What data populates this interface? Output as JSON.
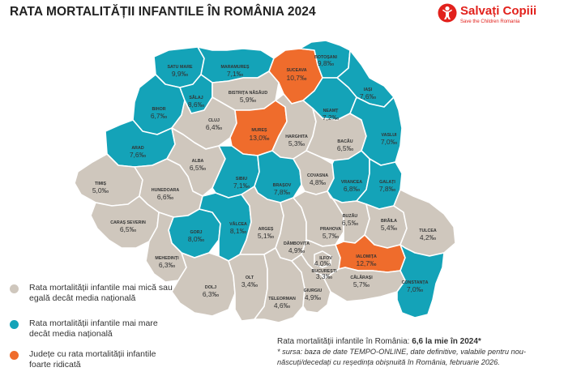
{
  "title": "RATA MORTALITĂȚII INFANTILE ÎN ROMÂNIA 2024",
  "logo": {
    "name": "Salvați Copiii",
    "tagline": "Save the Children Romania"
  },
  "colors": {
    "gray": "#cfc7bd",
    "teal": "#14a3b8",
    "orange": "#ef6c2c"
  },
  "counties": {
    "satu_mare": {
      "name": "SATU MARE",
      "value": "9,9‰",
      "category": "teal"
    },
    "maramures": {
      "name": "MARAMUREȘ",
      "value": "7,1‰",
      "category": "teal"
    },
    "suceava": {
      "name": "SUCEAVA",
      "value": "10,7‰",
      "category": "orange"
    },
    "botosani": {
      "name": "BOTOȘANI",
      "value": "9,8‰",
      "category": "teal"
    },
    "bihor": {
      "name": "BIHOR",
      "value": "6,7‰",
      "category": "teal"
    },
    "salaj": {
      "name": "SĂLAJ",
      "value": "8,6‰",
      "category": "teal"
    },
    "bistrita": {
      "name": "BISTRIȚA NĂSĂUD",
      "value": "5,9‰",
      "category": "gray"
    },
    "iasi": {
      "name": "IAȘI",
      "value": "7,6‰",
      "category": "teal"
    },
    "neamt": {
      "name": "NEAMȚ",
      "value": "7,2‰",
      "category": "teal"
    },
    "cluj": {
      "name": "CLUJ",
      "value": "6,4‰",
      "category": "gray"
    },
    "mures": {
      "name": "MUREȘ",
      "value": "13,0‰",
      "category": "orange"
    },
    "harghita": {
      "name": "HARGHITA",
      "value": "5,3‰",
      "category": "gray"
    },
    "bacau": {
      "name": "BACĂU",
      "value": "6,5‰",
      "category": "gray"
    },
    "vaslui": {
      "name": "VASLUI",
      "value": "7,0‰",
      "category": "teal"
    },
    "arad": {
      "name": "ARAD",
      "value": "7,6‰",
      "category": "teal"
    },
    "alba": {
      "name": "ALBA",
      "value": "6,5‰",
      "category": "gray"
    },
    "sibiu": {
      "name": "SIBIU",
      "value": "7,1‰",
      "category": "teal"
    },
    "brasov": {
      "name": "BRAȘOV",
      "value": "7,8‰",
      "category": "teal"
    },
    "covasna": {
      "name": "COVASNA",
      "value": "4,8‰",
      "category": "gray"
    },
    "vrancea": {
      "name": "VRANCEA",
      "value": "6,8‰",
      "category": "teal"
    },
    "galati": {
      "name": "GALAȚI",
      "value": "7,8‰",
      "category": "teal"
    },
    "timis": {
      "name": "TIMIȘ",
      "value": "5,0‰",
      "category": "gray"
    },
    "hunedoara": {
      "name": "HUNEDOARA",
      "value": "6,6‰",
      "category": "gray"
    },
    "caras": {
      "name": "CARAȘ SEVERIN",
      "value": "6,5‰",
      "category": "gray"
    },
    "gorj": {
      "name": "GORJ",
      "value": "8,0‰",
      "category": "teal"
    },
    "valcea": {
      "name": "VÂLCEA",
      "value": "8,1‰",
      "category": "teal"
    },
    "arges": {
      "name": "ARGEȘ",
      "value": "5,1‰",
      "category": "gray"
    },
    "prahova": {
      "name": "PRAHOVA",
      "value": "5,7‰",
      "category": "gray"
    },
    "buzau": {
      "name": "BUZĂU",
      "value": "6,5‰",
      "category": "gray"
    },
    "braila": {
      "name": "BRĂILA",
      "value": "5,4‰",
      "category": "gray"
    },
    "tulcea": {
      "name": "TULCEA",
      "value": "4,2‰",
      "category": "gray"
    },
    "mehedinti": {
      "name": "MEHEDINȚI",
      "value": "6,3‰",
      "category": "gray"
    },
    "dambovita": {
      "name": "DÂMBOVIȚA",
      "value": "4,9‰",
      "category": "gray"
    },
    "ilfov": {
      "name": "ILFOV",
      "value": "4,0‰",
      "category": "gray"
    },
    "bucuresti": {
      "name": "BUCUREȘTI",
      "value": "3,3‰",
      "category": "gray"
    },
    "ialomita": {
      "name": "IALOMIȚA",
      "value": "12,7‰",
      "category": "orange"
    },
    "calarasi": {
      "name": "CĂLĂRAȘI",
      "value": "5,7‰",
      "category": "gray"
    },
    "constanta": {
      "name": "CONSTANȚA",
      "value": "7,0‰",
      "category": "teal"
    },
    "dolj": {
      "name": "DOLJ",
      "value": "6,3‰",
      "category": "gray"
    },
    "olt": {
      "name": "OLT",
      "value": "3,4‰",
      "category": "gray"
    },
    "teleorman": {
      "name": "TELEORMAN",
      "value": "4,6‰",
      "category": "gray"
    },
    "giurgiu": {
      "name": "GIURGIU",
      "value": "4,9‰",
      "category": "gray"
    }
  },
  "legend": [
    {
      "label": "Rata mortalității infantile mai mică sau egală decât media națională",
      "color": "#cfc7bd"
    },
    {
      "label": "Rata mortalității infantile mai mare decât media națională",
      "color": "#14a3b8"
    },
    {
      "label": "Județe cu rata mortalității infantile foarte ridicată",
      "color": "#ef6c2c"
    }
  ],
  "footnote": {
    "main_prefix": "Rata mortalității infantile în România: ",
    "main_value": "6,6 la mie în 2024*",
    "source": "* sursa: baza de date TEMPO-ONLINE, date definitive, valabile pentru nou-născuți/decedați cu reședința obișnuită în România, februarie 2026."
  }
}
